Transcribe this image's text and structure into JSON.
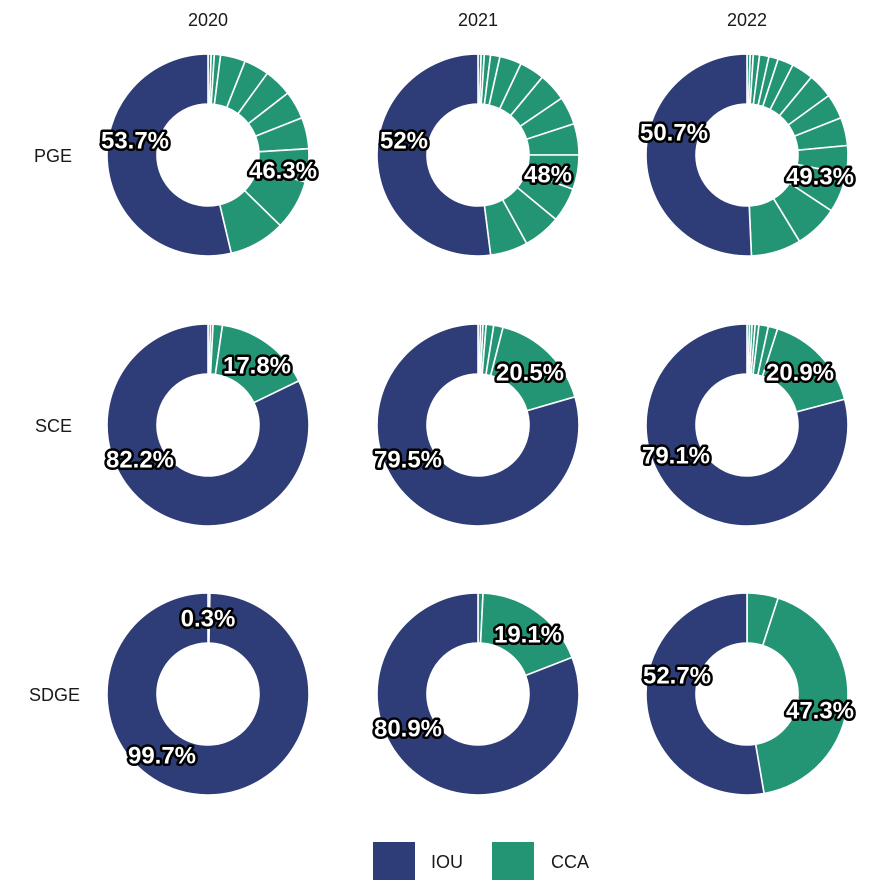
{
  "chart_data": {
    "type": "pie",
    "variant": "donut-facet-grid",
    "columns": [
      "2020",
      "2021",
      "2022"
    ],
    "rows": [
      "PGE",
      "SCE",
      "SDGE"
    ],
    "colors": {
      "IOU": "#2e3d78",
      "CCA": "#239574"
    },
    "legend": {
      "position": "bottom",
      "entries": [
        "IOU",
        "CCA"
      ]
    },
    "panels": [
      {
        "row": "PGE",
        "col": "2020",
        "iou": 53.7,
        "cca": 46.3,
        "iou_label": "53.7%",
        "cca_label": "46.3%",
        "cca_segments": [
          0.5,
          0.5,
          1.0,
          4.0,
          4.0,
          4.5,
          4.5,
          5.0,
          5.3,
          8.0,
          9.0
        ]
      },
      {
        "row": "PGE",
        "col": "2021",
        "iou": 52.0,
        "cca": 48.0,
        "iou_label": "52%",
        "cca_label": "48%",
        "cca_segments": [
          0.5,
          0.5,
          1.0,
          1.5,
          3.5,
          4.0,
          4.5,
          4.5,
          5.0,
          5.5,
          5.5,
          6.0,
          6.0
        ]
      },
      {
        "row": "PGE",
        "col": "2022",
        "iou": 50.7,
        "cca": 49.3,
        "iou_label": "50.7%",
        "cca_label": "49.3%",
        "cca_segments": [
          0.5,
          0.5,
          1.0,
          1.5,
          1.5,
          2.5,
          3.5,
          4.0,
          4.0,
          4.5,
          4.5,
          6.3,
          7.0,
          8.0
        ]
      },
      {
        "row": "SCE",
        "col": "2020",
        "iou": 82.2,
        "cca": 17.8,
        "iou_label": "82.2%",
        "cca_label": "17.8%",
        "cca_segments": [
          0.4,
          0.4,
          1.5,
          15.5
        ]
      },
      {
        "row": "SCE",
        "col": "2021",
        "iou": 79.5,
        "cca": 20.5,
        "iou_label": "79.5%",
        "cca_label": "20.5%",
        "cca_segments": [
          0.4,
          0.4,
          0.5,
          1.2,
          1.5,
          16.5
        ]
      },
      {
        "row": "SCE",
        "col": "2022",
        "iou": 79.1,
        "cca": 20.9,
        "iou_label": "79.1%",
        "cca_label": "20.9%",
        "cca_segments": [
          0.4,
          0.4,
          0.5,
          0.6,
          1.5,
          1.5,
          16.0
        ]
      },
      {
        "row": "SDGE",
        "col": "2020",
        "iou": 99.7,
        "cca": 0.3,
        "iou_label": "99.7%",
        "cca_label": "0.3%",
        "cca_segments": [
          0.3
        ]
      },
      {
        "row": "SDGE",
        "col": "2021",
        "iou": 80.9,
        "cca": 19.1,
        "iou_label": "80.9%",
        "cca_label": "19.1%",
        "cca_segments": [
          0.8,
          18.3
        ]
      },
      {
        "row": "SDGE",
        "col": "2022",
        "iou": 52.7,
        "cca": 47.3,
        "iou_label": "52.7%",
        "cca_label": "47.3%",
        "cca_segments": [
          5.0,
          42.3
        ]
      }
    ]
  }
}
